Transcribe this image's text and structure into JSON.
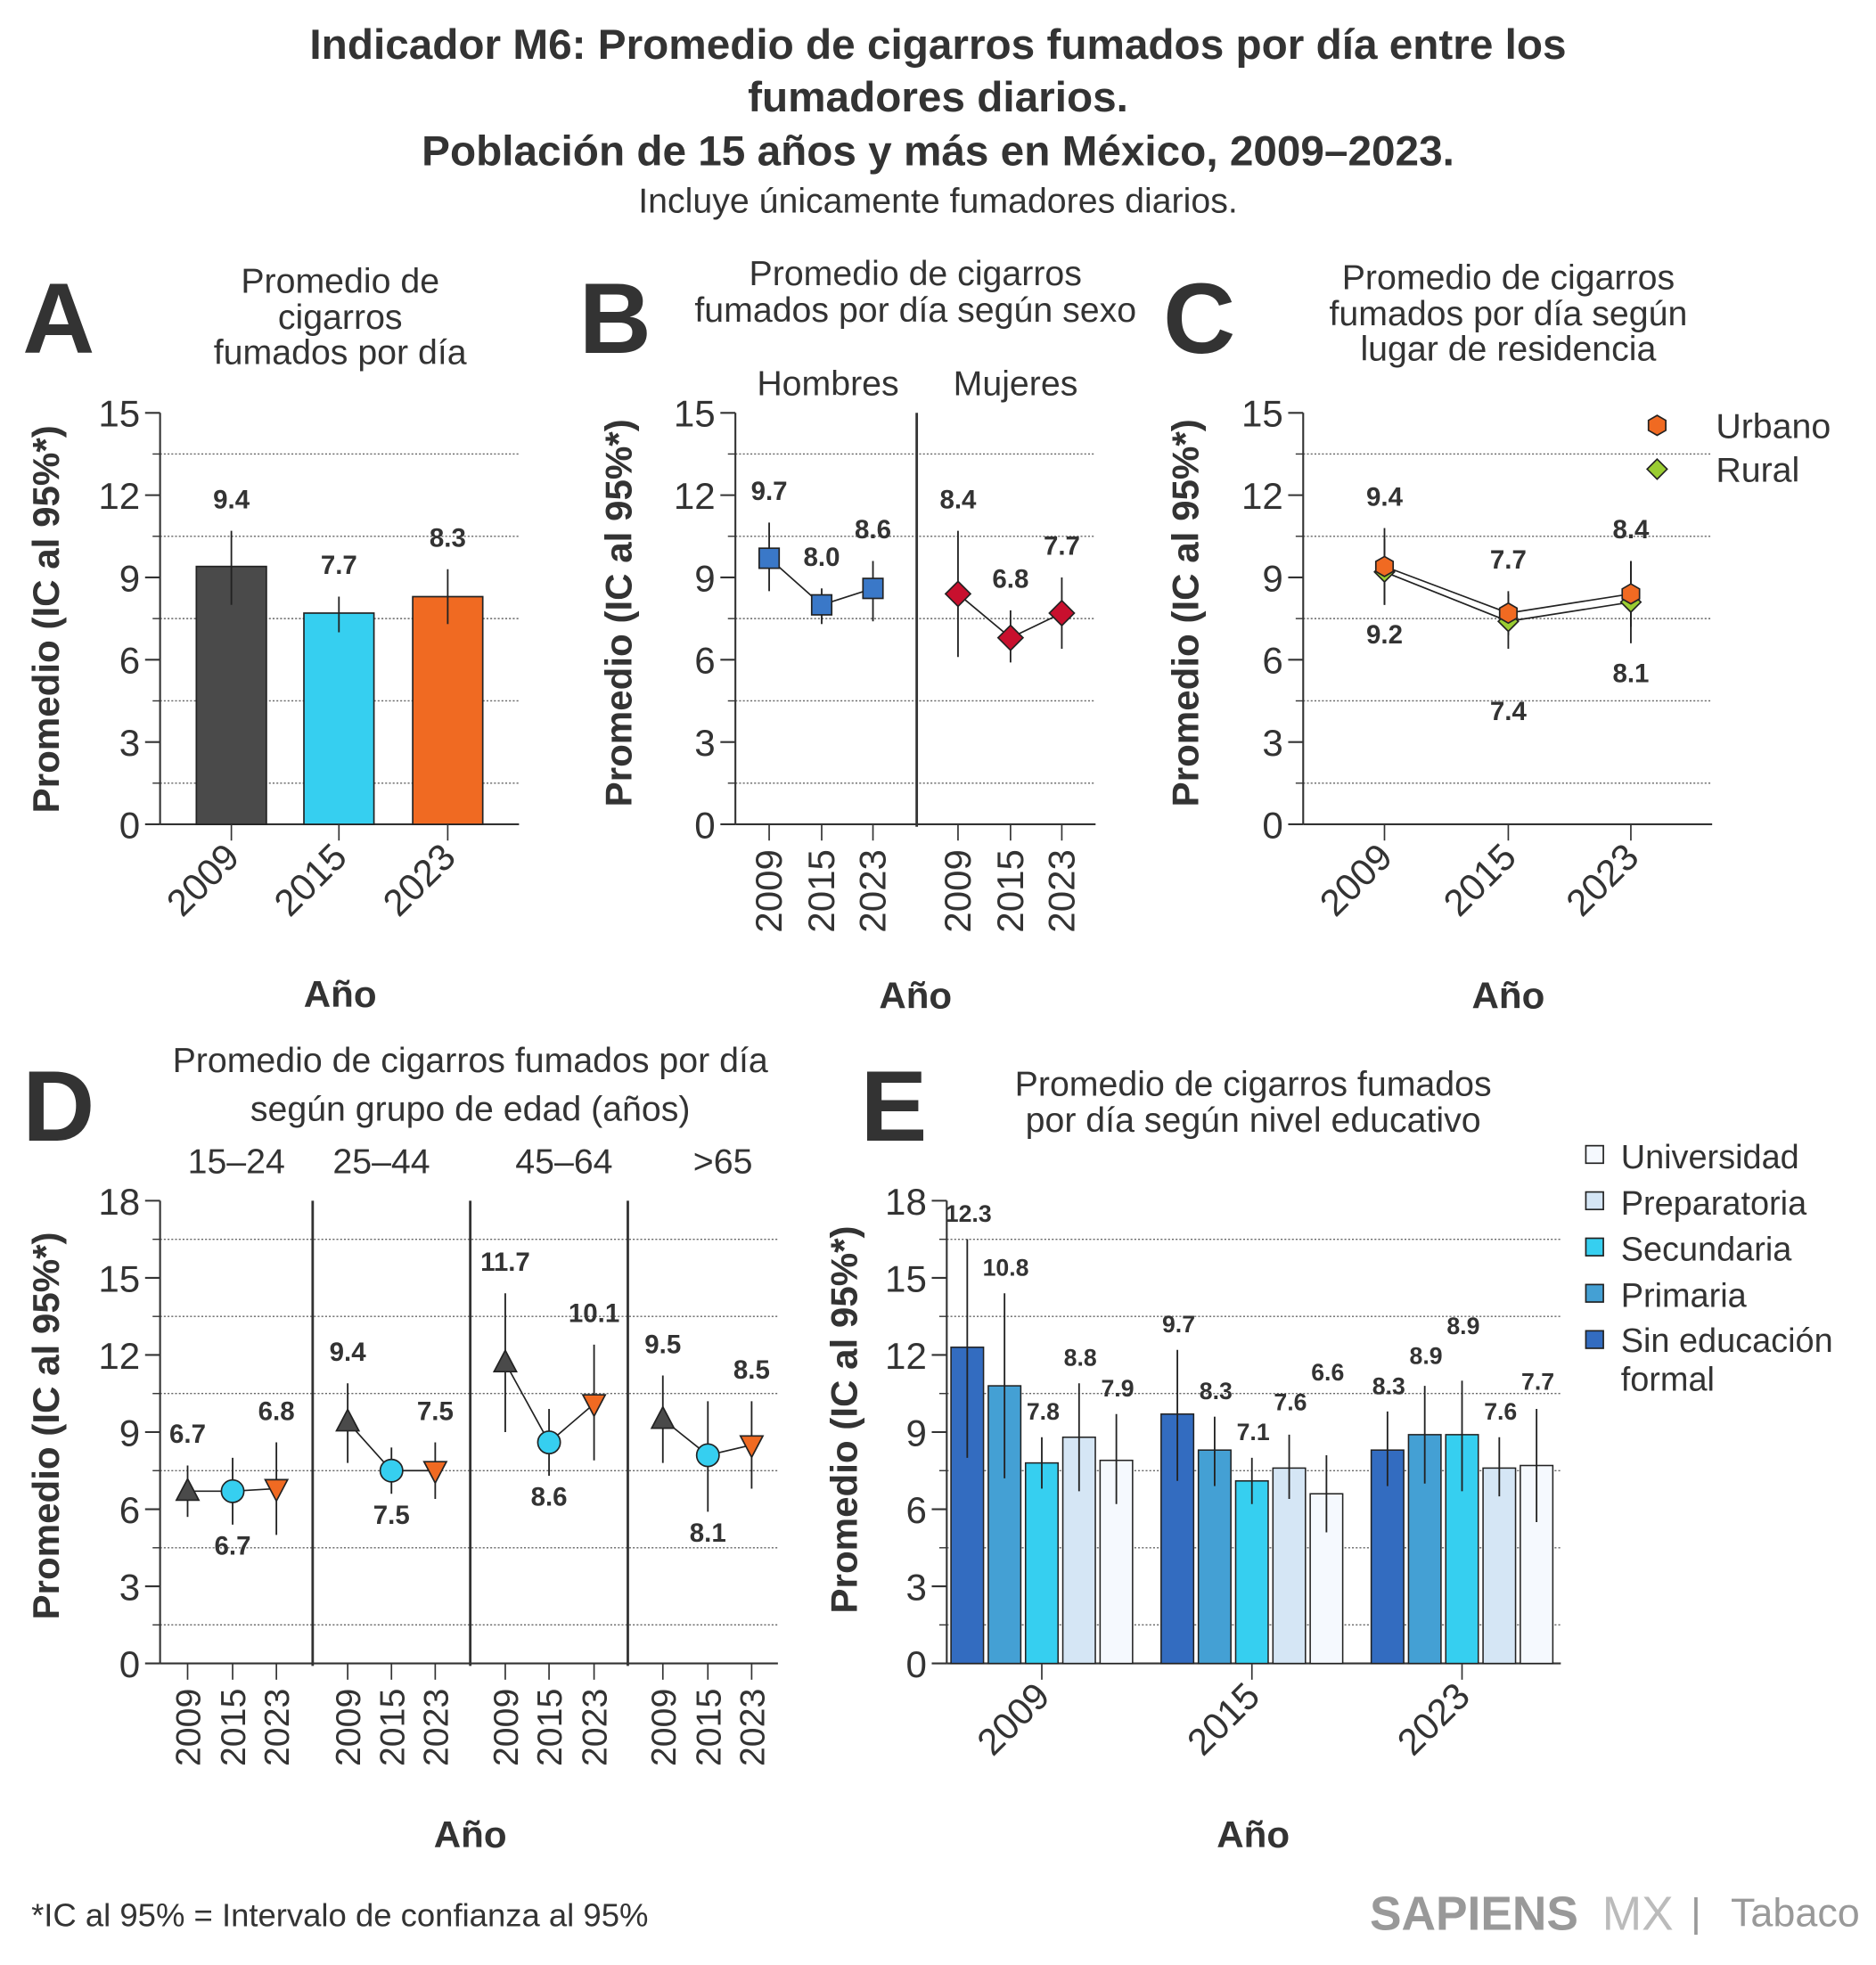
{
  "title": {
    "line1": "Indicador M6: Promedio de cigarros fumados por día entre los",
    "line2": "fumadores diarios.",
    "line3": "Población de 15 años y más en México, 2009–2023.",
    "subtitle": "Incluye únicamente fumadores diarios."
  },
  "footnote": "*IC al 95% = Intervalo de confianza al 95%",
  "logo": {
    "brand": "SAPIENS",
    "mx": "MX",
    "sep": "|",
    "topic": "Tabaco"
  },
  "chart_data": [
    {
      "panel_letter": "A",
      "type": "bar",
      "title_lines": [
        "Promedio de",
        "cigarros",
        "fumados por día"
      ],
      "ylabel": "Promedio (IC al 95%*)",
      "xlabel": "Año",
      "ylim": [
        0,
        15
      ],
      "yticks": [
        "0",
        "3",
        "6",
        "9",
        "12",
        "15"
      ],
      "grid": "dotted horizontal",
      "categories": [
        "2009",
        "2015",
        "2023"
      ],
      "values": [
        9.4,
        7.7,
        8.3
      ],
      "labels": [
        "9.4",
        "7.7",
        "8.3"
      ],
      "ci_low": [
        8.0,
        7.0,
        7.3
      ],
      "ci_high": [
        10.7,
        8.3,
        9.3
      ],
      "colors": [
        "#4a4a4a",
        "#36cff0",
        "#f06a22"
      ]
    },
    {
      "panel_letter": "B",
      "type": "scatter",
      "title_lines": [
        "Promedio de cigarros",
        "fumados por día según sexo"
      ],
      "ylabel": "Promedio (IC al 95%*)",
      "xlabel": "Año",
      "ylim": [
        0,
        15
      ],
      "yticks": [
        "0",
        "3",
        "6",
        "9",
        "12",
        "15"
      ],
      "groups": [
        {
          "label": "Hombres",
          "categories": [
            "2009",
            "2015",
            "2023"
          ],
          "values": [
            9.7,
            8.0,
            8.6
          ],
          "labels": [
            "9.7",
            "8.0",
            "8.6"
          ],
          "ci_low": [
            8.5,
            7.3,
            7.4
          ],
          "ci_high": [
            11.0,
            8.6,
            9.6
          ],
          "marker": "square",
          "color": "#3a78c8"
        },
        {
          "label": "Mujeres",
          "categories": [
            "2009",
            "2015",
            "2023"
          ],
          "values": [
            8.4,
            6.8,
            7.7
          ],
          "labels": [
            "8.4",
            "6.8",
            "7.7"
          ],
          "ci_low": [
            6.1,
            5.9,
            6.4
          ],
          "ci_high": [
            10.7,
            7.8,
            9.0
          ],
          "marker": "diamond",
          "color": "#c8102e"
        }
      ]
    },
    {
      "panel_letter": "C",
      "type": "line",
      "title_lines": [
        "Promedio de cigarros",
        "fumados por día según",
        "lugar de residencia"
      ],
      "ylabel": "Promedio (IC al 95%*)",
      "xlabel": "Año",
      "ylim": [
        0,
        15
      ],
      "yticks": [
        "0",
        "3",
        "6",
        "9",
        "12",
        "15"
      ],
      "categories": [
        "2009",
        "2015",
        "2023"
      ],
      "legend_position": "top-right",
      "series": [
        {
          "name": "Urbano",
          "values": [
            9.4,
            7.7,
            8.4
          ],
          "labels": [
            "9.4",
            "7.7",
            "8.4"
          ],
          "ci_low": [
            8.0,
            6.9,
            7.2
          ],
          "ci_high": [
            10.8,
            8.5,
            9.6
          ],
          "marker": "hexagon",
          "color": "#f06a22"
        },
        {
          "name": "Rural",
          "values": [
            9.2,
            7.4,
            8.1
          ],
          "labels": [
            "9.2",
            "7.4",
            "8.1"
          ],
          "ci_low": [
            8.0,
            6.4,
            6.6
          ],
          "ci_high": [
            10.4,
            8.4,
            9.6
          ],
          "marker": "diamond",
          "color": "#9acd32"
        }
      ]
    },
    {
      "panel_letter": "D",
      "type": "line",
      "title_lines": [
        "Promedio de cigarros fumados por día",
        "según grupo de edad (años)"
      ],
      "ylabel": "Promedio (IC al 95%*)",
      "xlabel": "Año",
      "ylim": [
        0,
        18
      ],
      "yticks": [
        "0",
        "3",
        "6",
        "9",
        "12",
        "15",
        "18"
      ],
      "year_markers": {
        "2009": "triangle-up #4a4a4a",
        "2015": "circle #36cff0",
        "2023": "triangle-down #f06a22"
      },
      "groups": [
        {
          "label": "15–24",
          "categories": [
            "2009",
            "2015",
            "2023"
          ],
          "values": [
            6.7,
            6.7,
            6.8
          ],
          "labels": [
            "6.7",
            "6.7",
            "6.8"
          ],
          "ci_low": [
            5.7,
            5.4,
            5.0
          ],
          "ci_high": [
            7.7,
            8.0,
            8.6
          ]
        },
        {
          "label": "25–44",
          "categories": [
            "2009",
            "2015",
            "2023"
          ],
          "values": [
            9.4,
            7.5,
            7.5
          ],
          "labels": [
            "9.4",
            "7.5",
            "7.5"
          ],
          "ci_low": [
            7.8,
            6.6,
            6.4
          ],
          "ci_high": [
            10.9,
            8.4,
            8.6
          ]
        },
        {
          "label": "45–64",
          "categories": [
            "2009",
            "2015",
            "2023"
          ],
          "values": [
            11.7,
            8.6,
            10.1
          ],
          "labels": [
            "11.7",
            "8.6",
            "10.1"
          ],
          "ci_low": [
            9.0,
            7.3,
            7.9
          ],
          "ci_high": [
            14.4,
            9.9,
            12.4
          ]
        },
        {
          "label": ">65",
          "categories": [
            "2009",
            "2015",
            "2023"
          ],
          "values": [
            9.5,
            8.1,
            8.5
          ],
          "labels": [
            "9.5",
            "8.1",
            "8.5"
          ],
          "ci_low": [
            7.8,
            5.9,
            6.8
          ],
          "ci_high": [
            11.2,
            10.2,
            10.2
          ]
        }
      ]
    },
    {
      "panel_letter": "E",
      "type": "bar",
      "title_lines": [
        "Promedio de cigarros fumados",
        "por día según nivel educativo"
      ],
      "ylabel": "Promedio (IC al 95%*)",
      "xlabel": "Año",
      "ylim": [
        0,
        18
      ],
      "yticks": [
        "0",
        "3",
        "6",
        "9",
        "12",
        "15",
        "18"
      ],
      "categories": [
        "2009",
        "2015",
        "2023"
      ],
      "legend": [
        {
          "name": "Universidad",
          "color": "#f5f9fe"
        },
        {
          "name": "Preparatoria",
          "color": "#d5e6f5"
        },
        {
          "name": "Secundaria",
          "color": "#36cff0"
        },
        {
          "name": "Primaria",
          "color": "#44a0d4"
        },
        {
          "name_lines": [
            "Sin educación",
            "formal"
          ],
          "color": "#336cc0"
        }
      ],
      "series": [
        {
          "name": "Sin educación formal",
          "color": "#336cc0",
          "values": [
            12.3,
            9.7,
            8.3
          ],
          "labels": [
            "12.3",
            "9.7",
            "8.3"
          ],
          "ci_low": [
            8.0,
            7.1,
            6.9
          ],
          "ci_high": [
            16.5,
            12.2,
            9.8
          ]
        },
        {
          "name": "Primaria",
          "color": "#44a0d4",
          "values": [
            10.8,
            8.3,
            8.9
          ],
          "labels": [
            "10.8",
            "8.3",
            "8.9"
          ],
          "ci_low": [
            7.2,
            6.9,
            7.0
          ],
          "ci_high": [
            14.4,
            9.6,
            10.8
          ]
        },
        {
          "name": "Secundaria",
          "color": "#36cff0",
          "values": [
            7.8,
            7.1,
            8.9
          ],
          "labels": [
            "7.8",
            "7.1",
            "8.9"
          ],
          "ci_low": [
            6.8,
            6.2,
            6.7
          ],
          "ci_high": [
            8.8,
            8.0,
            11.0
          ]
        },
        {
          "name": "Preparatoria",
          "color": "#d5e6f5",
          "values": [
            8.8,
            7.6,
            7.6
          ],
          "labels": [
            "8.8",
            "7.6",
            "7.6"
          ],
          "ci_low": [
            6.7,
            6.4,
            6.5
          ],
          "ci_high": [
            10.9,
            8.9,
            8.8
          ]
        },
        {
          "name": "Universidad",
          "color": "#f5f9fe",
          "values": [
            7.9,
            6.6,
            7.7
          ],
          "labels": [
            "7.9",
            "6.6",
            "7.7"
          ],
          "ci_low": [
            6.2,
            5.1,
            5.5
          ],
          "ci_high": [
            9.7,
            8.1,
            9.9
          ]
        }
      ]
    }
  ]
}
